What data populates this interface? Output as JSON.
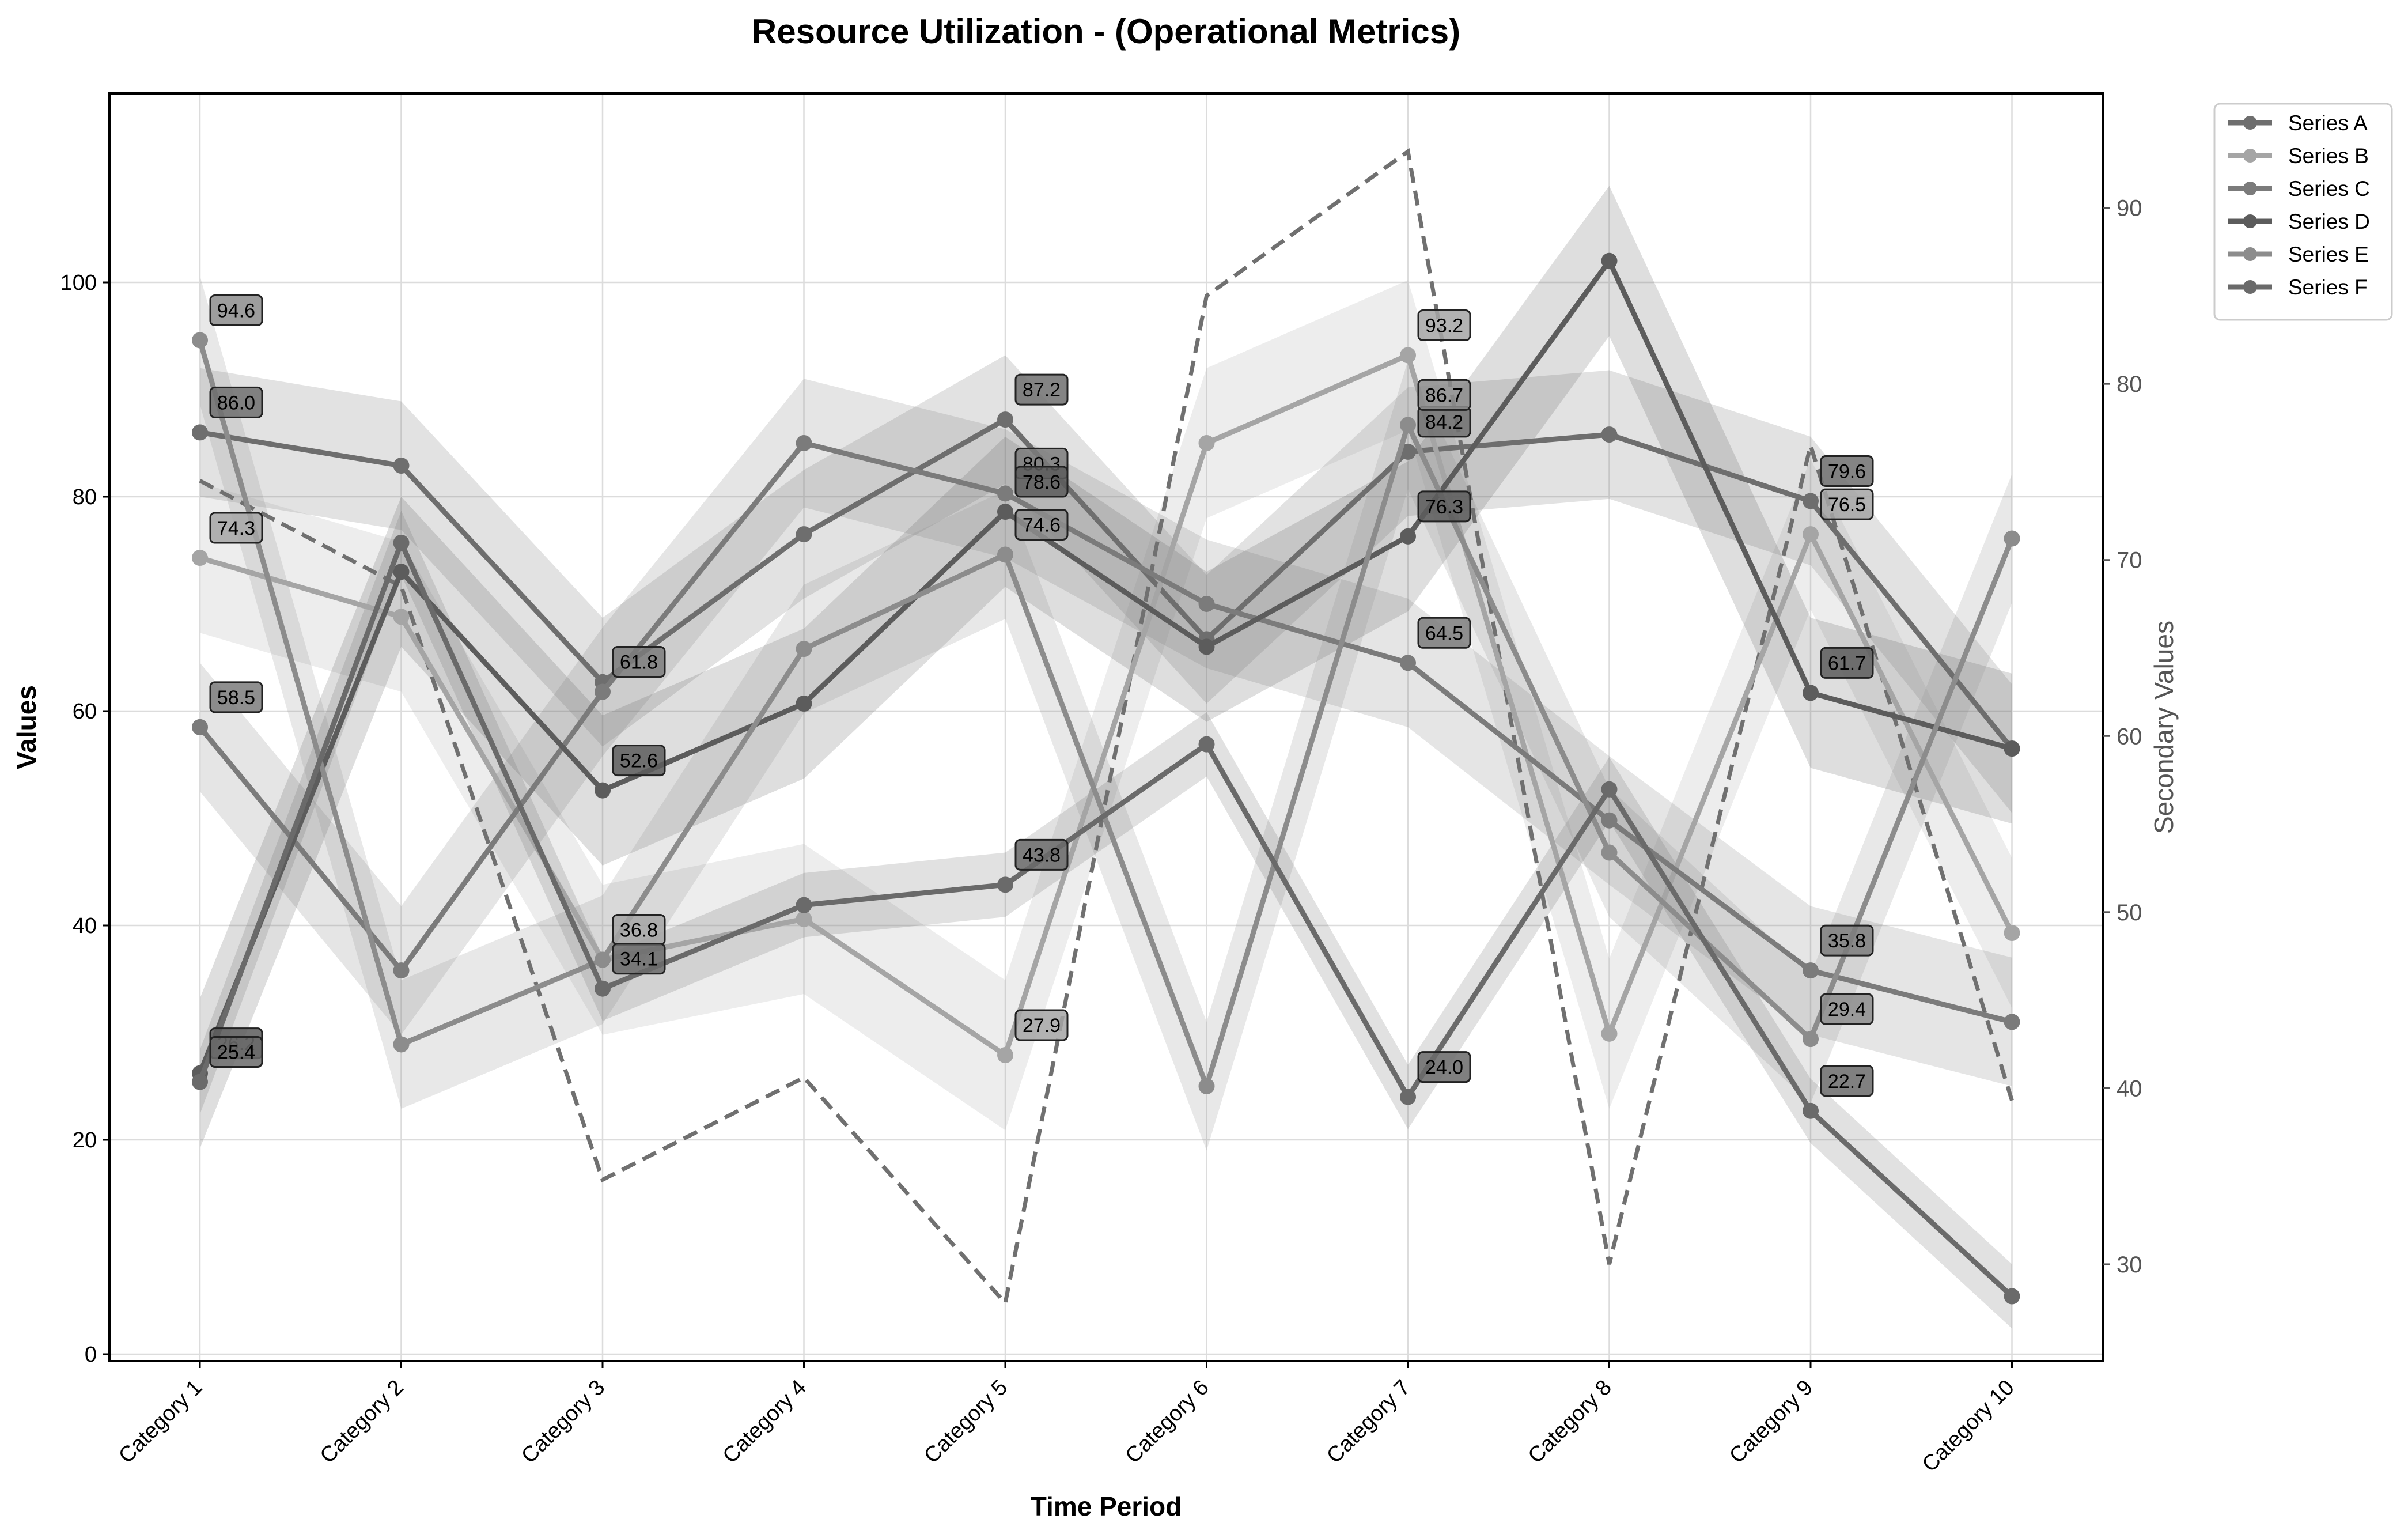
{
  "chart_data": {
    "type": "line",
    "title": "Resource Utilization - (Operational Metrics)",
    "xlabel": "Time Period",
    "ylabel": "Values",
    "ylabel_secondary": "Secondary Values",
    "categories": [
      "Category 1",
      "Category 2",
      "Category 3",
      "Category 4",
      "Category 5",
      "Category 6",
      "Category 7",
      "Category 8",
      "Category 9",
      "Category 10"
    ],
    "ylim": [
      -1,
      118
    ],
    "ylim_secondary": [
      24.5,
      96.5
    ],
    "yticks": [
      0,
      20,
      40,
      60,
      80,
      100
    ],
    "yticks_secondary": [
      30,
      40,
      50,
      60,
      70,
      80,
      90
    ],
    "grid": true,
    "legend_position": "outside top-right",
    "series": [
      {
        "name": "Series A",
        "color": "#6e6e6e",
        "band": 6,
        "values": [
          86.0,
          82.9,
          62.7,
          76.5,
          87.2,
          66.7,
          84.2,
          85.8,
          79.6,
          56.5
        ],
        "labeled": [
          0,
          4,
          6,
          8
        ]
      },
      {
        "name": "Series B",
        "color": "#a5a5a5",
        "band": 7,
        "values": [
          74.3,
          68.8,
          36.8,
          40.6,
          27.9,
          85.0,
          93.2,
          29.9,
          76.5,
          39.3
        ],
        "labeled": [
          0,
          2,
          4,
          6,
          8
        ]
      },
      {
        "name": "Series C",
        "color": "#7b7b7b",
        "band": 6,
        "values": [
          58.5,
          35.8,
          61.8,
          85.0,
          80.3,
          70.0,
          64.5,
          49.8,
          35.8,
          31.0
        ],
        "labeled": [
          0,
          2,
          4,
          6,
          8
        ]
      },
      {
        "name": "Series D",
        "color": "#5c5c5c",
        "band": 7,
        "values": [
          26.2,
          73.0,
          52.6,
          60.7,
          78.6,
          66.0,
          76.3,
          102.0,
          61.7,
          56.5
        ],
        "labeled": [
          0,
          2,
          4,
          6,
          8
        ]
      },
      {
        "name": "Series E",
        "color": "#8c8c8c",
        "band": 6,
        "values": [
          94.6,
          28.9,
          36.8,
          65.8,
          74.6,
          25.0,
          86.7,
          46.8,
          29.4,
          76.1
        ],
        "labeled": [
          0,
          4,
          6,
          8
        ]
      },
      {
        "name": "Series F",
        "color": "#6a6a6a",
        "band": 3,
        "values": [
          25.4,
          75.7,
          34.1,
          41.9,
          43.8,
          56.9,
          24.0,
          52.7,
          22.7,
          5.4
        ],
        "labeled": [
          0,
          2,
          4,
          6,
          8
        ]
      }
    ],
    "secondary_series": {
      "color": "#707070",
      "values": [
        74.5,
        68.5,
        34.8,
        40.6,
        27.8,
        85.0,
        93.2,
        30.0,
        76.5,
        39.3
      ]
    }
  }
}
